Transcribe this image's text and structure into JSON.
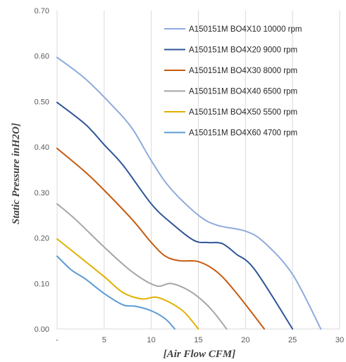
{
  "chart_data": {
    "type": "line",
    "title": "",
    "xlabel": "[Air Flow CFM]",
    "ylabel": "Static Pressure inH2O]",
    "xlim": [
      0,
      30
    ],
    "ylim": [
      0,
      0.7
    ],
    "x_ticks": [
      "-",
      "5",
      "10",
      "15",
      "20",
      "25",
      "30"
    ],
    "y_ticks": [
      "0.00",
      "0.10",
      "0.20",
      "0.30",
      "0.40",
      "0.50",
      "0.60",
      "0.70"
    ],
    "grid": "vertical only",
    "legend_position": "top-right",
    "series": [
      {
        "name": "A150151M BO4X10 10000 rpm",
        "color": "#8FAADC",
        "points": [
          [
            0,
            0.597
          ],
          [
            3,
            0.55
          ],
          [
            6,
            0.488
          ],
          [
            8,
            0.44
          ],
          [
            10,
            0.37
          ],
          [
            12,
            0.31
          ],
          [
            15,
            0.25
          ],
          [
            17,
            0.228
          ],
          [
            20,
            0.215
          ],
          [
            22,
            0.19
          ],
          [
            25,
            0.12
          ],
          [
            28,
            0.0
          ]
        ]
      },
      {
        "name": "A150151M BO4X20 9000 rpm",
        "color": "#2F5597",
        "points": [
          [
            0,
            0.498
          ],
          [
            3,
            0.45
          ],
          [
            5,
            0.405
          ],
          [
            7,
            0.36
          ],
          [
            10,
            0.275
          ],
          [
            12,
            0.235
          ],
          [
            14.5,
            0.195
          ],
          [
            16,
            0.19
          ],
          [
            17.5,
            0.188
          ],
          [
            19,
            0.165
          ],
          [
            21,
            0.13
          ],
          [
            25,
            0.0
          ]
        ]
      },
      {
        "name": "A150151M BO4X30 8000 rpm",
        "color": "#C55A11",
        "points": [
          [
            0,
            0.397
          ],
          [
            3,
            0.345
          ],
          [
            5,
            0.305
          ],
          [
            8,
            0.24
          ],
          [
            10,
            0.19
          ],
          [
            11.5,
            0.16
          ],
          [
            13,
            0.15
          ],
          [
            15,
            0.148
          ],
          [
            17,
            0.125
          ],
          [
            19,
            0.08
          ],
          [
            22,
            0.0
          ]
        ]
      },
      {
        "name": "A150151M BO4X40 6500 rpm",
        "color": "#A5A5A5",
        "points": [
          [
            0,
            0.275
          ],
          [
            2,
            0.24
          ],
          [
            5,
            0.18
          ],
          [
            8,
            0.125
          ],
          [
            10.5,
            0.095
          ],
          [
            12,
            0.1
          ],
          [
            13.5,
            0.09
          ],
          [
            15,
            0.07
          ],
          [
            16.5,
            0.04
          ],
          [
            18,
            0.0
          ]
        ]
      },
      {
        "name": "A150151M BO4X50 5500 rpm",
        "color": "#E1B000",
        "points": [
          [
            0,
            0.198
          ],
          [
            2,
            0.165
          ],
          [
            5,
            0.115
          ],
          [
            7,
            0.08
          ],
          [
            9,
            0.066
          ],
          [
            10.5,
            0.07
          ],
          [
            12,
            0.058
          ],
          [
            13.5,
            0.037
          ],
          [
            15,
            0.0
          ]
        ]
      },
      {
        "name": "A150151M BO4X60 4700 rpm",
        "color": "#5B9BD5",
        "points": [
          [
            0,
            0.16
          ],
          [
            1.5,
            0.13
          ],
          [
            3,
            0.11
          ],
          [
            5,
            0.078
          ],
          [
            7,
            0.053
          ],
          [
            8.3,
            0.05
          ],
          [
            10,
            0.04
          ],
          [
            11.5,
            0.022
          ],
          [
            12.5,
            0.0
          ]
        ]
      }
    ]
  }
}
